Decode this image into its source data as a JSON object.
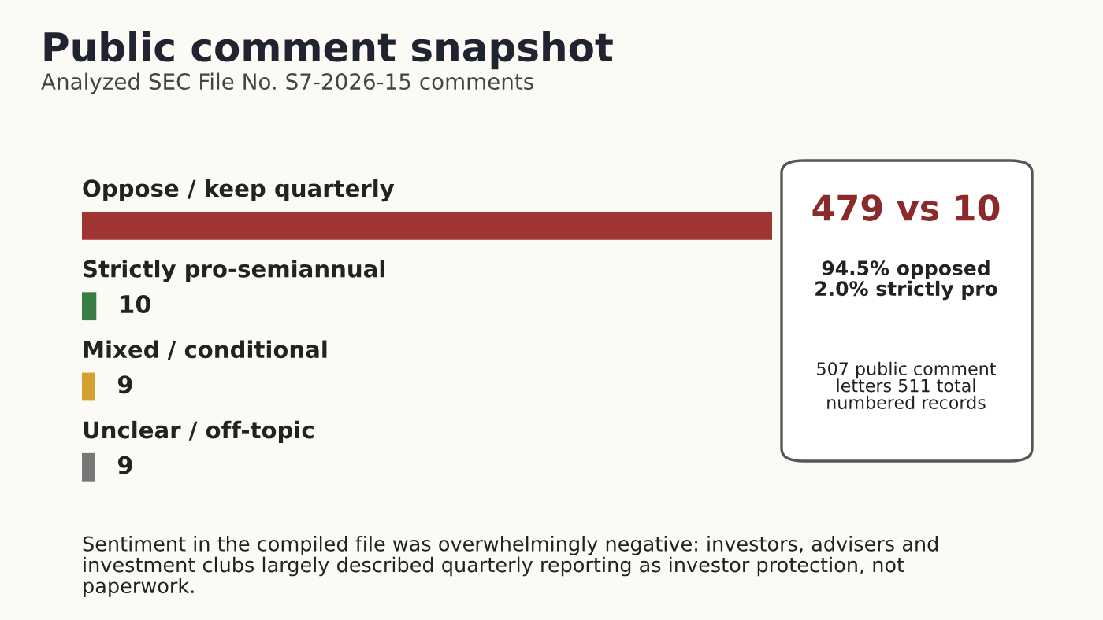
{
  "chart_data": {
    "type": "bar",
    "orientation": "horizontal",
    "title": "Public comment snapshot",
    "subtitle": "Analyzed SEC File No. S7-2026-15 comments",
    "categories": [
      "Oppose / keep quarterly",
      "Strictly pro-semiannual",
      "Mixed / conditional",
      "Unclear / off-topic"
    ],
    "values": [
      479,
      10,
      9,
      9
    ],
    "colors": [
      "#9e3530",
      "#3a7d44",
      "#d4a030",
      "#777777"
    ],
    "value_labels": [
      null,
      "10",
      "9",
      "9"
    ],
    "annotations": [
      "479 vs 10",
      "94.5% opposed\n2.0% strictly pro",
      "507 public comment letters 511 total numbered records",
      "Sentiment in the compiled file was overwhelmingly negative: investors, advisers and investment clubs largely described quarterly reporting as investor protection, not paperwork."
    ]
  }
}
